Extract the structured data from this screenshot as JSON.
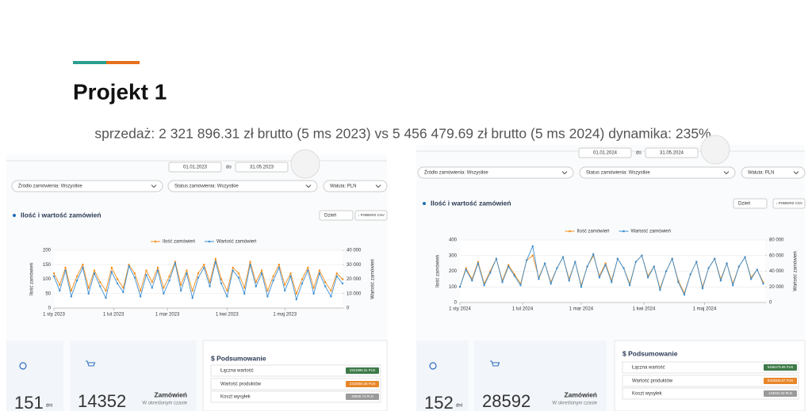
{
  "header": {
    "title": "Projekt 1",
    "subtitle": "sprzedaż: 2 321 896.31  zł brutto (5 ms 2023) vs 5 456 479.69 zł brutto (5 ms 2024) dynamika: 235%"
  },
  "panels": [
    {
      "filters": {
        "date_from": "01.01.2023",
        "date_sep": "do",
        "date_to": "31.05.2023",
        "source": "Źródło zamówienia: Wszystkie",
        "status": "Status zamówienia: Wszystkie",
        "currency": "Waluta: PLN"
      },
      "chart_header": {
        "title": "Ilość i wartość zamówień",
        "period": "Dzień",
        "csv": "↓ POBIERZ CSV"
      },
      "cards": {
        "days": "151",
        "days_unit": "dni",
        "orders": "14352",
        "orders_label": "Zamówień",
        "orders_sub": "W określonym czasie"
      },
      "summary": {
        "title": "$ Podsumowanie",
        "rows": [
          {
            "label": "Łączna wartość",
            "value": "2321896.31 PLN"
          },
          {
            "label": "Wartość produktów",
            "value": "2322066.35 PLN"
          },
          {
            "label": "Koszt wysyłek",
            "value": "48009.74 PLN"
          }
        ]
      }
    },
    {
      "filters": {
        "date_from": "01.01.2024",
        "date_sep": "do",
        "date_to": "31.05.2024",
        "source": "Źródło zamówienia: Wszystkie",
        "status": "Status zamówienia: Wszystkie",
        "currency": "Waluta: PLN"
      },
      "chart_header": {
        "title": "Ilość i wartość zamówień",
        "period": "Dzień",
        "csv": "↓ POBIERZ CSV"
      },
      "cards": {
        "days": "152",
        "days_unit": "dni",
        "orders": "28592",
        "orders_label": "Zamówień",
        "orders_sub": "W określonym czasie"
      },
      "summary": {
        "title": "$ Podsumowanie",
        "rows": [
          {
            "label": "Łączna wartość",
            "value": "5456479.69 PLN"
          },
          {
            "label": "Wartość produktów",
            "value": "5323945.67 PLN"
          },
          {
            "label": "Koszt wysyłek",
            "value": "133534.03 PLN"
          }
        ]
      }
    }
  ],
  "chart_data": [
    {
      "type": "line",
      "ylabel": "Ilość zamówień",
      "y2label": "Wartość zamówień",
      "grid": true,
      "x": [
        0,
        3,
        6,
        9,
        12,
        15,
        18,
        21,
        24,
        27,
        30,
        33,
        36,
        39,
        42,
        45,
        48,
        51,
        54,
        57,
        60,
        63,
        66,
        69,
        72,
        75,
        78,
        81,
        84,
        87,
        90,
        93,
        96,
        99,
        102,
        105,
        108,
        111,
        114,
        117,
        120,
        123,
        126,
        129,
        132,
        135,
        138,
        141,
        144,
        147,
        150
      ],
      "xlim": [
        0,
        150
      ],
      "xticks": [
        {
          "value": 0,
          "label": "1 sty 2023"
        },
        {
          "value": 31,
          "label": "1 lut 2023"
        },
        {
          "value": 59,
          "label": "1 mar 2023"
        },
        {
          "value": 90,
          "label": "1 kwi 2023"
        },
        {
          "value": 120,
          "label": "1 maj 2023"
        }
      ],
      "ylim": [
        0,
        200
      ],
      "yticks": [
        0,
        50,
        100,
        150,
        200
      ],
      "y2lim": [
        0,
        40000
      ],
      "y2ticks": [
        0,
        {
          "value": 10000,
          "label": "10 000"
        },
        {
          "value": 20000,
          "label": "20 000"
        },
        {
          "value": 30000,
          "label": "30 000"
        },
        {
          "value": 40000,
          "label": "40 000"
        }
      ],
      "series": [
        {
          "name": "Ilość zamówień",
          "color": "#f28e1c",
          "values": [
            120,
            80,
            140,
            60,
            110,
            150,
            70,
            130,
            90,
            60,
            140,
            100,
            70,
            150,
            120,
            60,
            130,
            90,
            140,
            70,
            110,
            160,
            80,
            130,
            60,
            120,
            150,
            90,
            170,
            100,
            60,
            140,
            120,
            70,
            160,
            90,
            130,
            60,
            110,
            150,
            80,
            120,
            50,
            100,
            140,
            70,
            130,
            90,
            60,
            120,
            100
          ]
        },
        {
          "name": "Wartość zamówień",
          "color": "#3d8fd1",
          "axis": "y2",
          "values": [
            22000,
            12000,
            26000,
            8000,
            19000,
            28000,
            10000,
            24000,
            15000,
            7000,
            25000,
            17000,
            11000,
            29000,
            21000,
            8000,
            23000,
            14000,
            26000,
            10000,
            19000,
            31000,
            12000,
            24000,
            7000,
            21000,
            28000,
            15000,
            32000,
            17000,
            8000,
            26000,
            21000,
            10000,
            30000,
            15000,
            24000,
            8000,
            19000,
            28000,
            12000,
            22000,
            6000,
            17000,
            26000,
            10000,
            24000,
            15000,
            8000,
            22000,
            17000
          ]
        }
      ]
    },
    {
      "type": "line",
      "ylabel": "Ilość zamówień",
      "y2label": "Wartość zamówień",
      "grid": true,
      "x": [
        0,
        3,
        6,
        9,
        12,
        15,
        18,
        21,
        24,
        27,
        30,
        33,
        36,
        39,
        42,
        45,
        48,
        51,
        54,
        57,
        60,
        63,
        66,
        69,
        72,
        75,
        78,
        81,
        84,
        87,
        90,
        93,
        96,
        99,
        102,
        105,
        108,
        111,
        114,
        117,
        120,
        123,
        126,
        129,
        132,
        135,
        138,
        141,
        144,
        147,
        150
      ],
      "xlim": [
        0,
        151
      ],
      "xticks": [
        {
          "value": 0,
          "label": "1 sty 2024"
        },
        {
          "value": 31,
          "label": "1 lut 2024"
        },
        {
          "value": 60,
          "label": "1 mar 2024"
        },
        {
          "value": 91,
          "label": "1 kwi 2024"
        },
        {
          "value": 121,
          "label": "1 maj 2024"
        }
      ],
      "ylim": [
        0,
        400
      ],
      "yticks": [
        0,
        100,
        200,
        300,
        400
      ],
      "y2lim": [
        0,
        80000
      ],
      "y2ticks": [
        0,
        {
          "value": 20000,
          "label": "20 000"
        },
        {
          "value": 40000,
          "label": "40 000"
        },
        {
          "value": 60000,
          "label": "60 000"
        },
        {
          "value": 80000,
          "label": "80 000"
        }
      ],
      "series": [
        {
          "name": "Ilość zamówień",
          "color": "#f28e1c",
          "values": [
            100,
            220,
            150,
            260,
            120,
            200,
            280,
            140,
            240,
            180,
            120,
            270,
            300,
            160,
            250,
            130,
            220,
            290,
            150,
            260,
            110,
            230,
            300,
            170,
            250,
            140,
            280,
            220,
            120,
            260,
            300,
            170,
            230,
            90,
            200,
            280,
            140,
            60,
            180,
            260,
            100,
            220,
            280,
            150,
            250,
            120,
            230,
            290,
            160,
            210,
            130
          ]
        },
        {
          "name": "Wartość zamówień",
          "color": "#3d8fd1",
          "axis": "y2",
          "values": [
            20000,
            42000,
            28000,
            50000,
            22000,
            38000,
            56000,
            26000,
            46000,
            34000,
            22000,
            54000,
            72000,
            30000,
            50000,
            24000,
            44000,
            58000,
            28000,
            52000,
            20000,
            46000,
            62000,
            32000,
            48000,
            26000,
            56000,
            44000,
            22000,
            52000,
            60000,
            32000,
            46000,
            16000,
            40000,
            56000,
            26000,
            10000,
            36000,
            52000,
            18000,
            44000,
            56000,
            28000,
            50000,
            22000,
            46000,
            58000,
            30000,
            42000,
            24000
          ]
        }
      ]
    }
  ]
}
